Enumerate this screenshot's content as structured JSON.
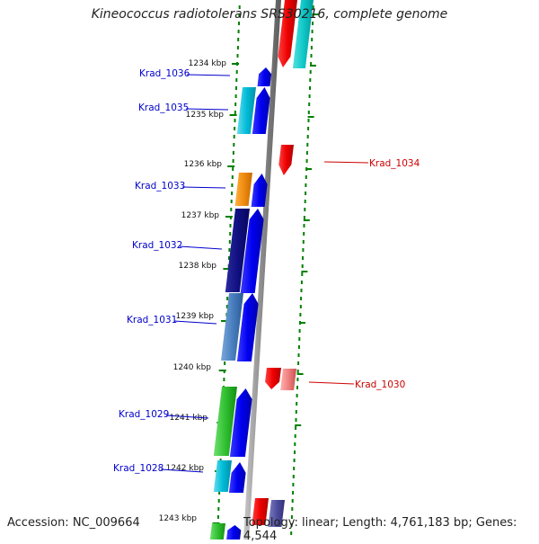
{
  "title": "Kineococcus radiotolerans SRS30216, complete genome",
  "accession_text": "Accession: NC_009664",
  "summary_text": "Topology: linear; Length: 4,761,183 bp; Genes: 4,544",
  "colors": {
    "forward_label": "#0000cc",
    "reverse_label": "#cc0000",
    "forward_gene": "#0000ff",
    "reverse_gene": "#ff0000",
    "ruler_dots": "#008000",
    "backbone": "#888888"
  },
  "kbp_ticks": [
    "1234 kbp",
    "1235 kbp",
    "1236 kbp",
    "1237 kbp",
    "1238 kbp",
    "1239 kbp",
    "1240 kbp",
    "1241 kbp",
    "1242 kbp",
    "1243 kbp"
  ],
  "genes": [
    {
      "name": "Krad_1036",
      "strand": "+"
    },
    {
      "name": "Krad_1035",
      "strand": "+"
    },
    {
      "name": "Krad_1034",
      "strand": "-"
    },
    {
      "name": "Krad_1033",
      "strand": "+"
    },
    {
      "name": "Krad_1032",
      "strand": "+"
    },
    {
      "name": "Krad_1031",
      "strand": "+"
    },
    {
      "name": "Krad_1030",
      "strand": "-"
    },
    {
      "name": "Krad_1029",
      "strand": "+"
    },
    {
      "name": "Krad_1028",
      "strand": "+"
    }
  ]
}
